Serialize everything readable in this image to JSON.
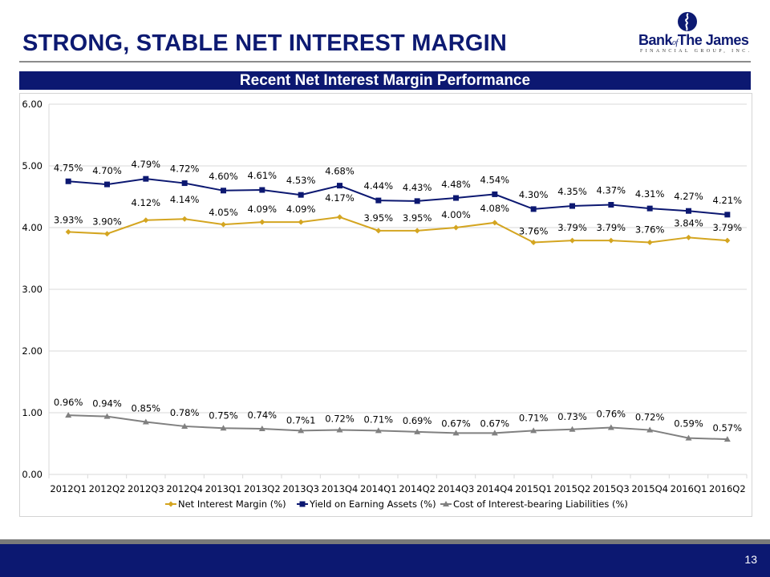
{
  "slide": {
    "title": "STRONG, STABLE NET INTEREST MARGIN",
    "page_number": "13",
    "logo": {
      "name_part1": "Bank",
      "name_of": "of",
      "name_part2": "The James",
      "subtitle": "FINANCIAL GROUP, INC."
    },
    "banner": "Recent Net Interest Margin Performance"
  },
  "colors": {
    "title": "#0d1a72",
    "banner_bg": "#0c1871",
    "footer_bg": "#0c1871",
    "nim_series": "#d4a520",
    "yield_series": "#0c1871",
    "cost_series": "#808080",
    "gridline": "#d9d9d9"
  },
  "chart_data": {
    "type": "line",
    "title": "",
    "xlabel": "",
    "ylabel": "",
    "ylim": [
      0,
      6
    ],
    "yticks": [
      "0.00",
      "1.00",
      "2.00",
      "3.00",
      "4.00",
      "5.00",
      "6.00"
    ],
    "grid": true,
    "legend_position": "bottom",
    "categories": [
      "2012Q1",
      "2012Q2",
      "2012Q3",
      "2012Q4",
      "2013Q1",
      "2013Q2",
      "2013Q3",
      "2013Q4",
      "2014Q1",
      "2014Q2",
      "2014Q3",
      "2014Q4",
      "2015Q1",
      "2015Q2",
      "2015Q3",
      "2015Q4",
      "2016Q1",
      "2016Q2"
    ],
    "series": [
      {
        "name": "Net Interest Margin (%)",
        "marker": "diamond",
        "values": [
          3.93,
          3.9,
          4.12,
          4.14,
          4.05,
          4.09,
          4.09,
          4.17,
          3.95,
          3.95,
          4.0,
          4.08,
          3.76,
          3.79,
          3.79,
          3.76,
          3.84,
          3.79
        ],
        "labels": [
          "3.93%",
          "3.90%",
          "4.12%",
          "4.14%",
          "4.05%",
          "4.09%",
          "4.09%",
          "4.17%",
          "3.95%",
          "3.95%",
          "4.00%",
          "4.08%",
          "3.76%",
          "3.79%",
          "3.79%",
          "3.76%",
          "3.84%",
          "3.79%"
        ]
      },
      {
        "name": "Yield on Earning Assets (%)",
        "marker": "square",
        "values": [
          4.75,
          4.7,
          4.79,
          4.72,
          4.6,
          4.61,
          4.53,
          4.68,
          4.44,
          4.43,
          4.48,
          4.54,
          4.3,
          4.35,
          4.37,
          4.31,
          4.27,
          4.21
        ],
        "labels": [
          "4.75%",
          "4.70%",
          "4.79%",
          "4.72%",
          "4.60%",
          "4.61%",
          "4.53%",
          "4.68%",
          "4.44%",
          "4.43%",
          "4.48%",
          "4.54%",
          "4.30%",
          "4.35%",
          "4.37%",
          "4.31%",
          "4.27%",
          "4.21%"
        ]
      },
      {
        "name": "Cost of Interest-bearing Liabilities (%)",
        "marker": "triangle",
        "values": [
          0.96,
          0.94,
          0.85,
          0.78,
          0.75,
          0.74,
          0.71,
          0.72,
          0.71,
          0.69,
          0.67,
          0.67,
          0.71,
          0.73,
          0.76,
          0.72,
          0.59,
          0.57
        ],
        "labels": [
          "0.96%",
          "0.94%",
          "0.85%",
          "0.78%",
          "0.75%",
          "0.74%",
          "0.7%1",
          "0.72%",
          "0.71%",
          "0.69%",
          "0.67%",
          "0.67%",
          "0.71%",
          "0.73%",
          "0.76%",
          "0.72%",
          "0.59%",
          "0.57%"
        ]
      }
    ]
  }
}
